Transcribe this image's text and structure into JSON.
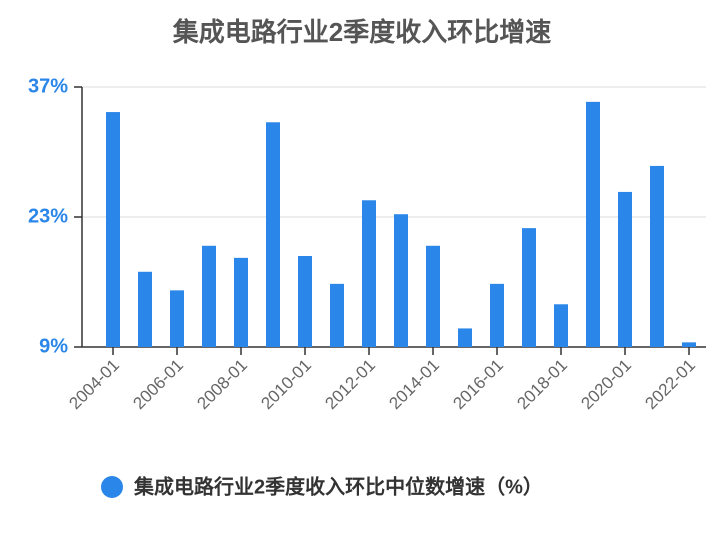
{
  "chart_data": {
    "type": "bar",
    "title": "集成电路行业2季度收入环比增速",
    "categories": [
      "2004-01",
      null,
      "2006-01",
      null,
      "2008-01",
      null,
      "2010-01",
      null,
      "2012-01",
      null,
      "2014-01",
      null,
      "2016-01",
      null,
      "2018-01",
      null,
      "2020-01",
      null,
      "2022-01"
    ],
    "series": [
      {
        "name": "集成电路行业2季度收入环比中位数增速（%）",
        "color": "#2a86e8",
        "values": [
          34.3,
          17.1,
          15.1,
          19.9,
          18.6,
          33.2,
          18.8,
          15.8,
          24.8,
          23.3,
          19.9,
          11.0,
          15.8,
          21.8,
          13.6,
          35.4,
          25.7,
          28.5,
          9.5
        ]
      }
    ],
    "ylim": [
      9,
      37
    ],
    "yticks": [
      {
        "value": 9,
        "label": "9%"
      },
      {
        "value": 23,
        "label": "23%"
      },
      {
        "value": 37,
        "label": "37%"
      }
    ],
    "grid": true
  }
}
